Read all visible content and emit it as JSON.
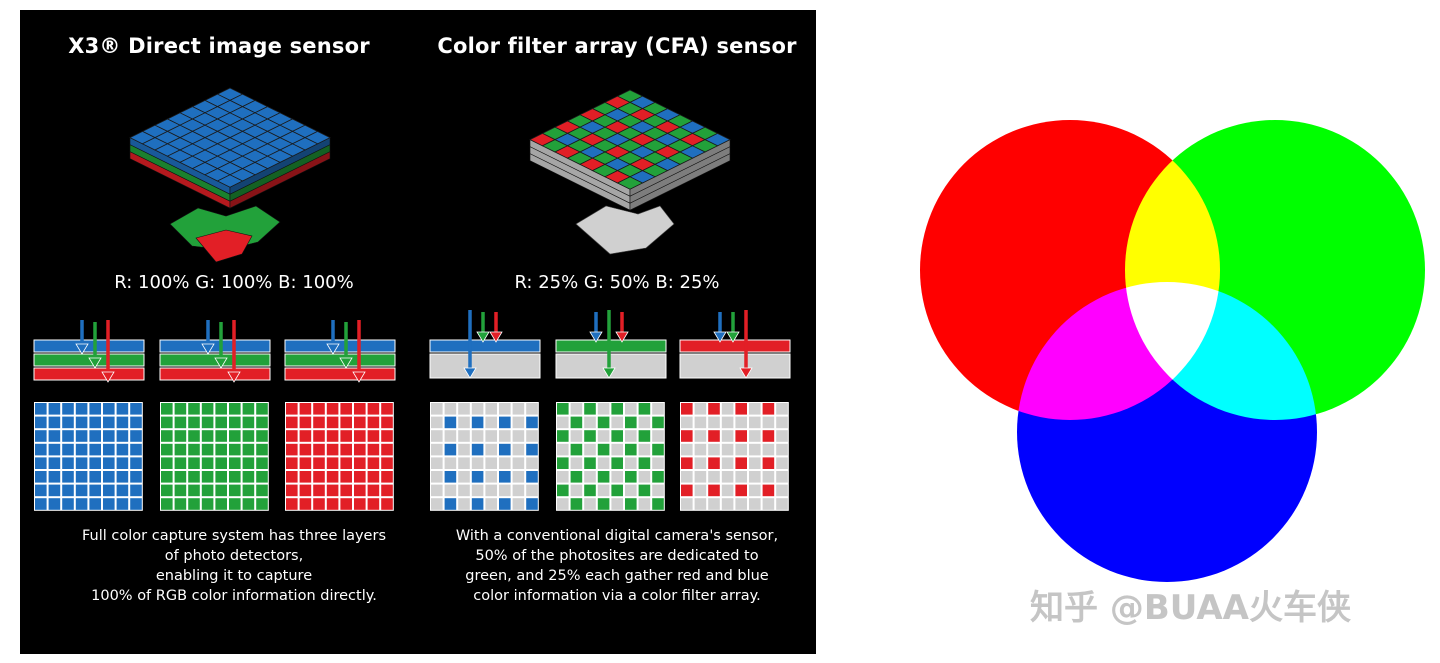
{
  "left_panel": {
    "x3": {
      "title": "X3® Direct image sensor",
      "stats": "R: 100% G: 100% B: 100%",
      "description": [
        "Full color capture system has three layers",
        "of photo detectors,",
        "enabling it to capture",
        "100% of RGB color information directly."
      ]
    },
    "cfa": {
      "title": "Color filter array (CFA) sensor",
      "stats": "R: 25% G: 50% B: 25%",
      "description": [
        "With a conventional digital camera's sensor,",
        "50% of the photosites are dedicated to",
        "green, and 25% each gather red and blue",
        "color information via a color filter array."
      ]
    }
  },
  "colors": {
    "red": "#e21f26",
    "green": "#22a13a",
    "blue": "#1f6fbf",
    "gray": "#d0d0d0",
    "background": "#000000",
    "venn_red": "#ff0000",
    "venn_green": "#00ff00",
    "venn_blue": "#0000ff"
  },
  "venn": {
    "circles": [
      "red",
      "green",
      "blue"
    ],
    "overlaps": [
      "yellow",
      "magenta",
      "cyan",
      "white"
    ]
  },
  "watermark": "知乎 @BUAA火车侠"
}
